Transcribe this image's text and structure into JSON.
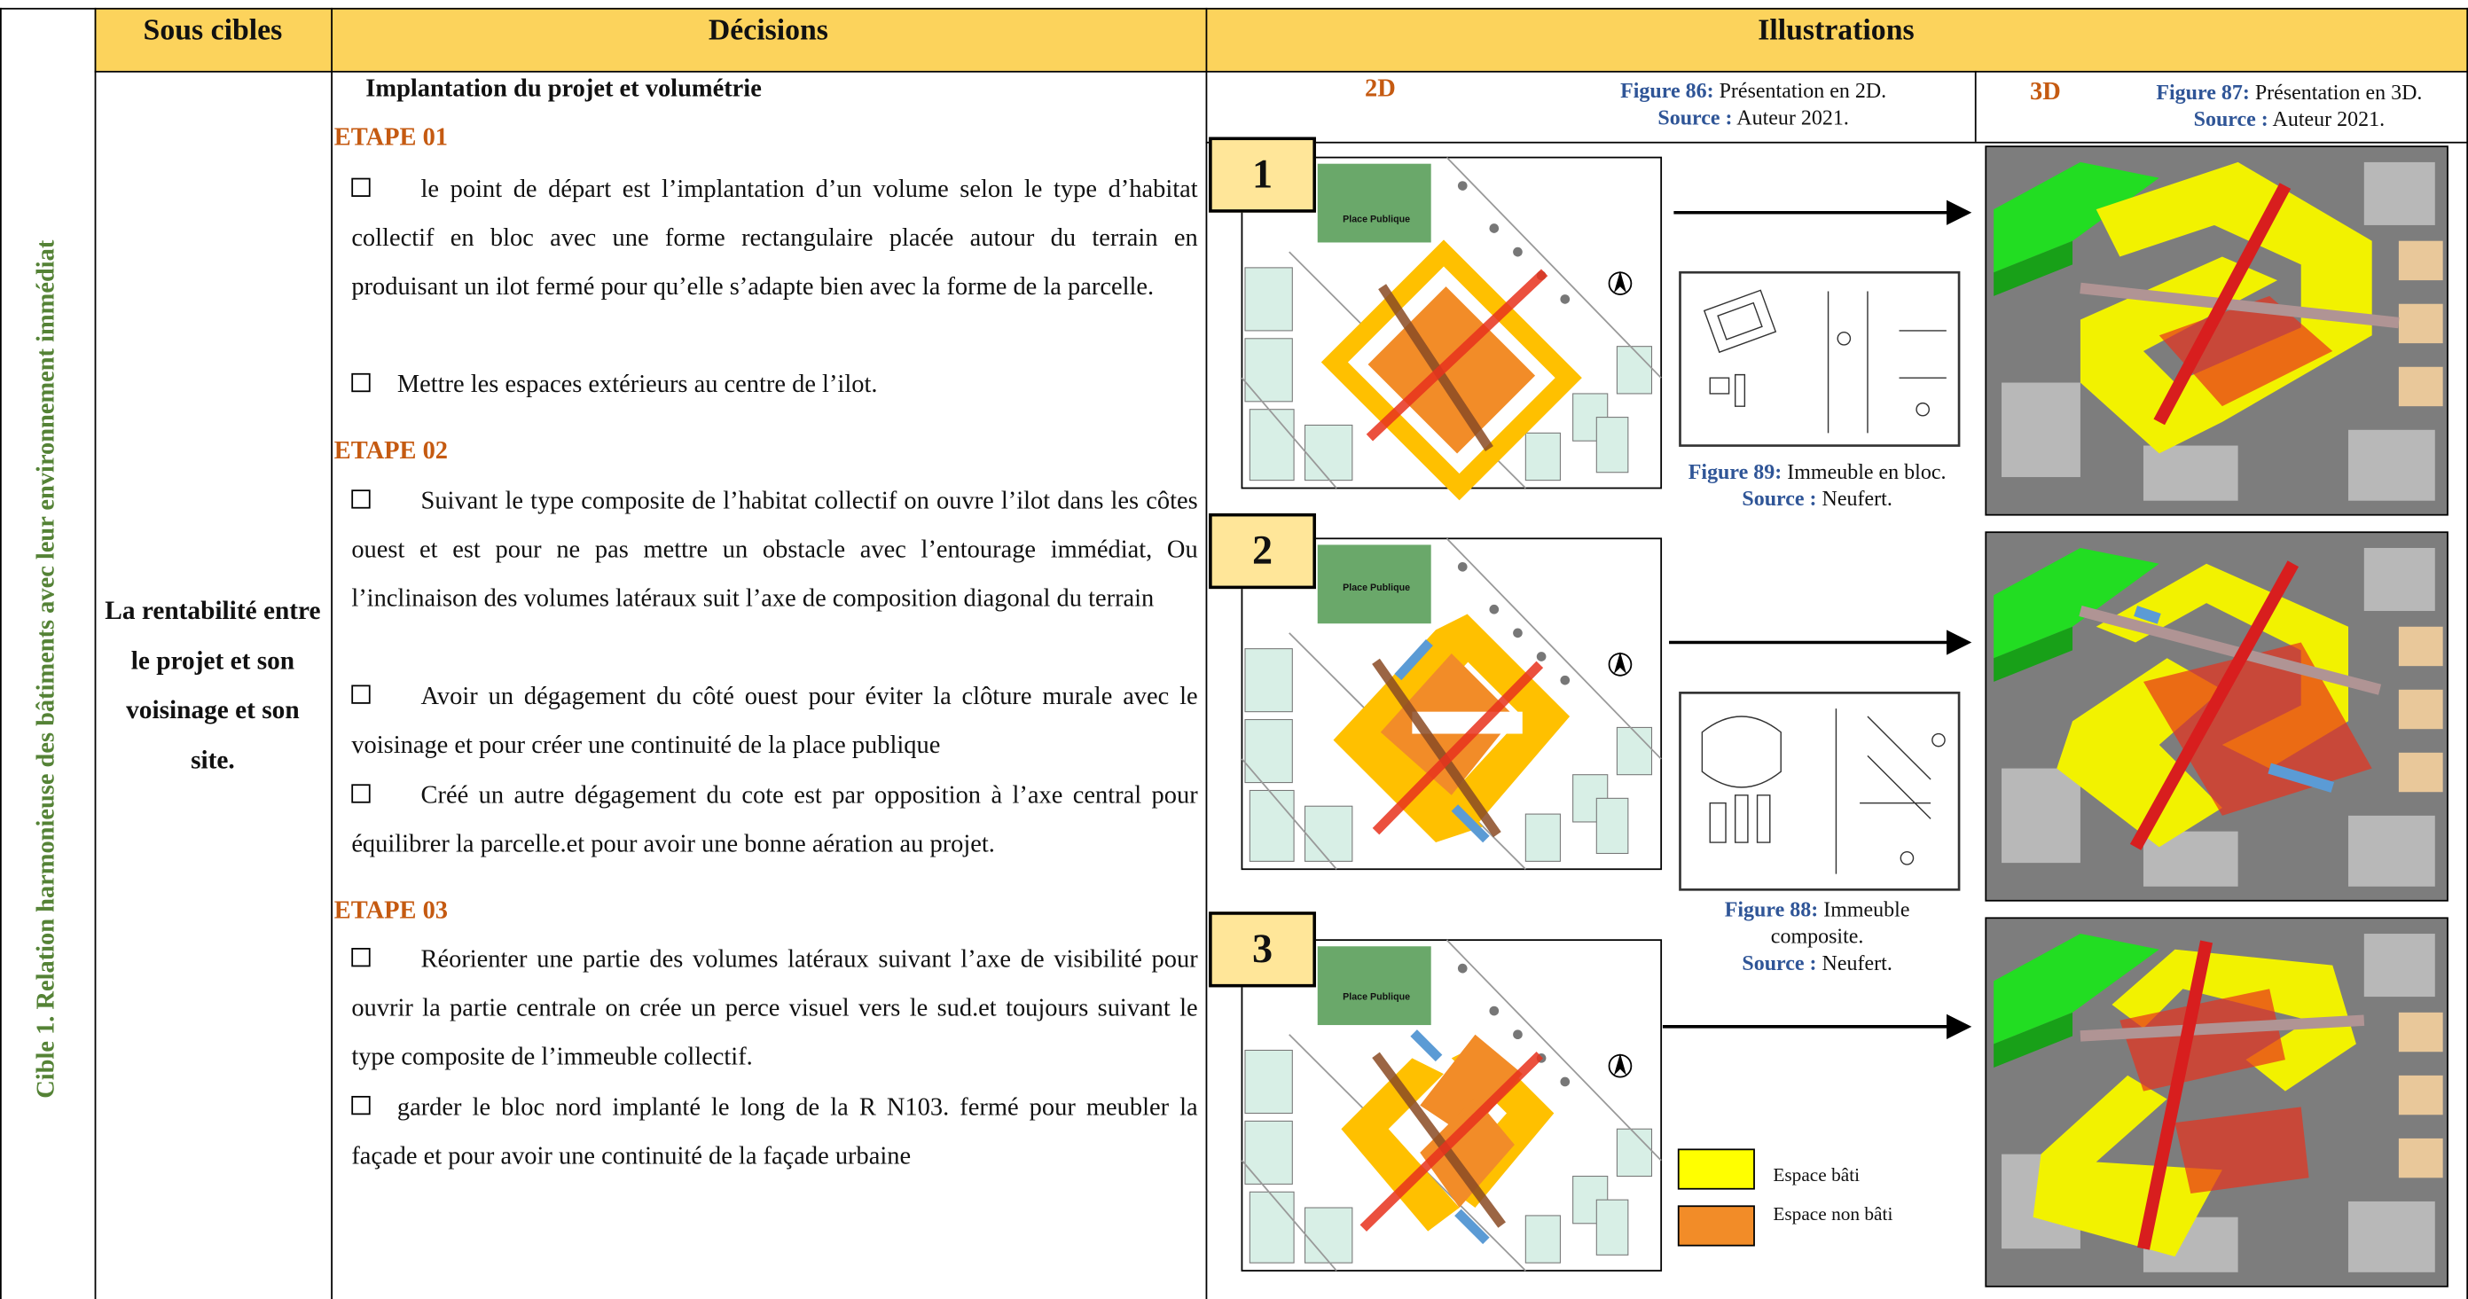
{
  "table": {
    "side_label": "Cible 1. Relation harmonieuse des bâtiments avec leur environnement immédiat",
    "headers": [
      "Sous cibles",
      "Décisions",
      "Illustrations"
    ],
    "sub_target": "La rentabilité entre le projet et son voisinage et son site.",
    "decisions": {
      "title": "Implantation du projet et volumétrie",
      "steps": [
        {
          "label": "ETAPE 01",
          "items": [
            "le point de départ est l’implantation d’un volume selon le type d’habitat collectif en bloc avec une forme rectangulaire placée autour du terrain en produisant un ilot fermé pour qu’elle s’adapte bien avec la forme de la parcelle.",
            "Mettre les espaces extérieurs au centre de l’ilot."
          ]
        },
        {
          "label": "ETAPE 02",
          "items": [
            "Suivant le type composite de l’habitat collectif on ouvre l’ilot dans les côtes ouest et est pour ne pas mettre un obstacle avec l’entourage immédiat, Ou l’inclinaison des volumes latéraux suit l’axe de composition diagonal du terrain",
            "Avoir un dégagement du côté ouest pour éviter la clôture murale avec le voisinage et pour créer une continuité de la place publique",
            "Créé un autre dégagement du cote est par opposition à l’axe central pour équilibrer la parcelle.et pour avoir une bonne aération au projet."
          ]
        },
        {
          "label": "ETAPE 03",
          "items": [
            "Réorienter une partie des volumes latéraux suivant l’axe de visibilité pour ouvrir la partie centrale on crée un perce visuel vers le sud.et toujours suivant le type composite de l’immeuble collectif.",
            "garder le bloc nord implanté le long de la R N103. fermé pour meubler la façade et pour avoir une continuité de la façade urbaine"
          ]
        }
      ]
    },
    "illustrations": {
      "col_2d": {
        "heading": "2D",
        "figure": "Figure 86:",
        "text": "Présentation en 2D.",
        "source_label": "Source :",
        "source": "Auteur 2021."
      },
      "col_3d": {
        "heading": "3D",
        "figure": "Figure 87:",
        "text": "Présentation en 3D.",
        "source_label": "Source :",
        "source": "Auteur 2021."
      },
      "steps": [
        "1",
        "2",
        "3"
      ],
      "place_label": "Place Publique",
      "fig_bloc": {
        "figure": "Figure 89:",
        "text": "Immeuble en bloc.",
        "source_label": "Source :",
        "source": "Neufert."
      },
      "fig_composite": {
        "figure": "Figure 88:",
        "text": "Immeuble composite.",
        "source_label": "Source :",
        "source": "Neufert."
      },
      "legend": [
        "Espace bâti",
        "Espace non bâti"
      ]
    }
  }
}
